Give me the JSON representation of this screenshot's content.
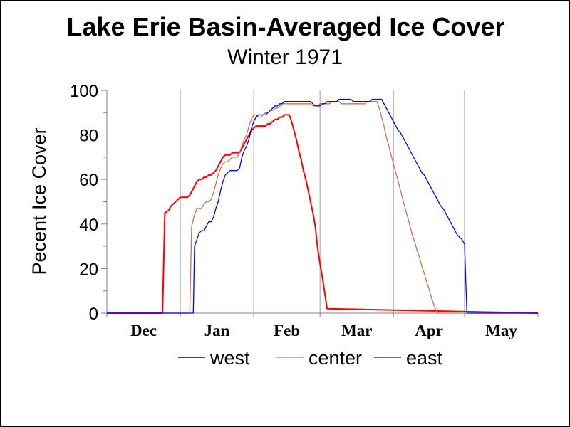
{
  "chart_data": {
    "type": "line",
    "title": "Lake Erie Basin-Averaged Ice Cover",
    "subtitle": "Winter 1971",
    "ylabel": "Pecent Ice Cover",
    "xlabel": "",
    "xlim": [
      0,
      182
    ],
    "ylim": [
      0,
      100
    ],
    "yticks": [
      0,
      20,
      40,
      60,
      80,
      100
    ],
    "ytick_labels": [
      "0",
      "20",
      "40",
      "60",
      "80",
      "100"
    ],
    "x_unit": "days after Dec 1",
    "xtick_positions": [
      15.5,
      46.5,
      76,
      105.5,
      136,
      166.5
    ],
    "xtick_labels": [
      "Dec",
      "Jan",
      "Feb",
      "Mar",
      "Apr",
      "May"
    ],
    "month_boundaries": [
      31,
      62,
      90,
      121,
      151
    ],
    "grid": {
      "x": true,
      "y": false
    },
    "legend_position": "bottom",
    "series": [
      {
        "name": "west",
        "color": "#ff0000",
        "x": [
          0,
          23.5,
          24.5,
          26,
          27,
          29,
          31,
          33,
          34,
          35,
          36,
          37,
          38,
          39,
          40,
          41,
          42,
          43,
          44,
          45,
          46,
          47,
          48,
          49,
          50,
          51,
          52,
          53,
          54,
          55,
          56,
          57,
          58,
          59,
          60,
          61,
          62,
          63,
          64,
          65,
          66,
          67,
          68,
          69,
          70,
          71,
          72,
          73,
          74,
          75,
          76,
          77,
          78,
          79,
          80,
          81,
          82,
          83,
          84,
          85,
          86,
          87,
          88,
          89,
          90,
          91,
          92,
          93,
          182
        ],
        "values": [
          0,
          0,
          45,
          46,
          48,
          50,
          52,
          52,
          52,
          53,
          55,
          57,
          59,
          60,
          60,
          61,
          61,
          62,
          62,
          63,
          64,
          66,
          68,
          70,
          71,
          71,
          71,
          72,
          72,
          72,
          72,
          74,
          76,
          78,
          80,
          82,
          83,
          84,
          84,
          84,
          84,
          84,
          85,
          85,
          86,
          87,
          87,
          88,
          88,
          89,
          89,
          89,
          86,
          82,
          78,
          73,
          69,
          64,
          60,
          55,
          50,
          45,
          39,
          29,
          22,
          16,
          9,
          2,
          0
        ]
      },
      {
        "name": "center",
        "color": "#c87050",
        "x": [
          0,
          35,
          35.8,
          36.5,
          37,
          38,
          39,
          40,
          41,
          42,
          43,
          44,
          45,
          46,
          47,
          48,
          49,
          50,
          51,
          52,
          53,
          54,
          55,
          56,
          57,
          58,
          59,
          60,
          61,
          62,
          63,
          64,
          65,
          66,
          67,
          68,
          69,
          70,
          71,
          72,
          73,
          74,
          75,
          76,
          77,
          78,
          79,
          80,
          81,
          82,
          83,
          84,
          85,
          86,
          87,
          88,
          89,
          90,
          91,
          92,
          93,
          94,
          95,
          96,
          97,
          98,
          99,
          100,
          101,
          102,
          103,
          104,
          105,
          106,
          107,
          108,
          109,
          110,
          111,
          112,
          113,
          114,
          115,
          116,
          117,
          118,
          119,
          120,
          121,
          122,
          123,
          124,
          125,
          126,
          127,
          128,
          129,
          130,
          131,
          132,
          133,
          134,
          135,
          136,
          137,
          138,
          139,
          140,
          141,
          142,
          143,
          144,
          145,
          146,
          147,
          148,
          149,
          150,
          182
        ],
        "values": [
          0,
          0,
          39,
          42,
          44,
          47,
          47,
          47,
          49,
          50,
          50,
          51,
          54,
          58,
          62,
          65,
          67,
          68,
          68,
          69,
          70,
          70,
          70,
          72,
          75,
          78,
          80,
          84,
          87,
          89,
          89,
          88,
          88,
          89,
          90,
          90,
          91,
          91,
          92,
          92,
          93,
          94,
          94,
          94,
          94,
          94,
          94,
          94,
          94,
          94,
          94,
          94,
          94,
          94,
          93,
          93,
          93,
          94,
          94,
          94,
          94,
          94,
          95,
          95,
          95,
          95,
          94,
          94,
          94,
          94,
          94,
          94,
          94,
          94,
          94,
          94,
          94,
          95,
          95,
          95,
          95,
          95,
          92,
          88,
          84,
          79,
          75,
          71,
          67,
          63,
          59,
          55,
          51,
          47,
          43,
          39,
          35,
          32,
          28,
          25,
          21,
          18,
          14,
          11,
          7,
          4,
          1,
          0,
          0,
          0,
          0,
          0,
          0,
          0,
          0,
          0,
          0,
          0,
          0
        ]
      },
      {
        "name": "east",
        "color": "#0000ff",
        "x": [
          0,
          36.5,
          37,
          38,
          39,
          40,
          41,
          42,
          43,
          44,
          45,
          46,
          47,
          48,
          49,
          50,
          51,
          52,
          53,
          54,
          55,
          56,
          57,
          58,
          59,
          60,
          61,
          62,
          63,
          64,
          65,
          66,
          67,
          68,
          69,
          70,
          71,
          72,
          73,
          74,
          75,
          76,
          77,
          78,
          79,
          80,
          81,
          82,
          83,
          84,
          85,
          86,
          87,
          88,
          89,
          90,
          91,
          92,
          93,
          94,
          95,
          96,
          97,
          98,
          99,
          100,
          101,
          102,
          103,
          104,
          105,
          106,
          107,
          108,
          109,
          110,
          111,
          112,
          113,
          114,
          115,
          116,
          117,
          118,
          119,
          120,
          121,
          122,
          123,
          124,
          125,
          126,
          127,
          128,
          129,
          130,
          131,
          132,
          133,
          134,
          135,
          136,
          137,
          138,
          139,
          140,
          141,
          142,
          143,
          144,
          145,
          146,
          147,
          148,
          149,
          150,
          151,
          152,
          153,
          154,
          155,
          156,
          157,
          157.8,
          158.4,
          182
        ],
        "values": [
          0,
          0,
          30,
          33,
          36,
          37,
          37,
          39,
          41,
          41,
          43,
          47,
          50,
          55,
          59,
          62,
          63,
          64,
          64,
          64,
          64,
          65,
          70,
          73,
          75,
          78,
          83,
          86,
          88,
          89,
          89,
          89,
          89,
          90,
          91,
          92,
          93,
          93,
          94,
          94,
          95,
          95,
          95,
          95,
          95,
          95,
          95,
          95,
          95,
          95,
          95,
          95,
          94,
          93,
          93,
          93,
          94,
          94,
          95,
          95,
          95,
          95,
          95,
          96,
          96,
          96,
          96,
          96,
          96,
          95,
          95,
          95,
          95,
          95,
          95,
          95,
          95,
          96,
          96,
          96,
          96,
          96,
          94,
          92,
          90,
          88,
          86,
          84,
          82,
          81,
          79,
          77,
          75,
          73,
          71,
          69,
          67,
          65,
          63,
          62,
          60,
          58,
          56,
          54,
          52,
          50,
          48,
          47,
          45,
          43,
          41,
          39,
          37,
          35,
          34,
          33,
          31,
          0,
          0,
          0,
          0,
          0,
          0,
          0,
          0,
          0
        ]
      }
    ]
  }
}
